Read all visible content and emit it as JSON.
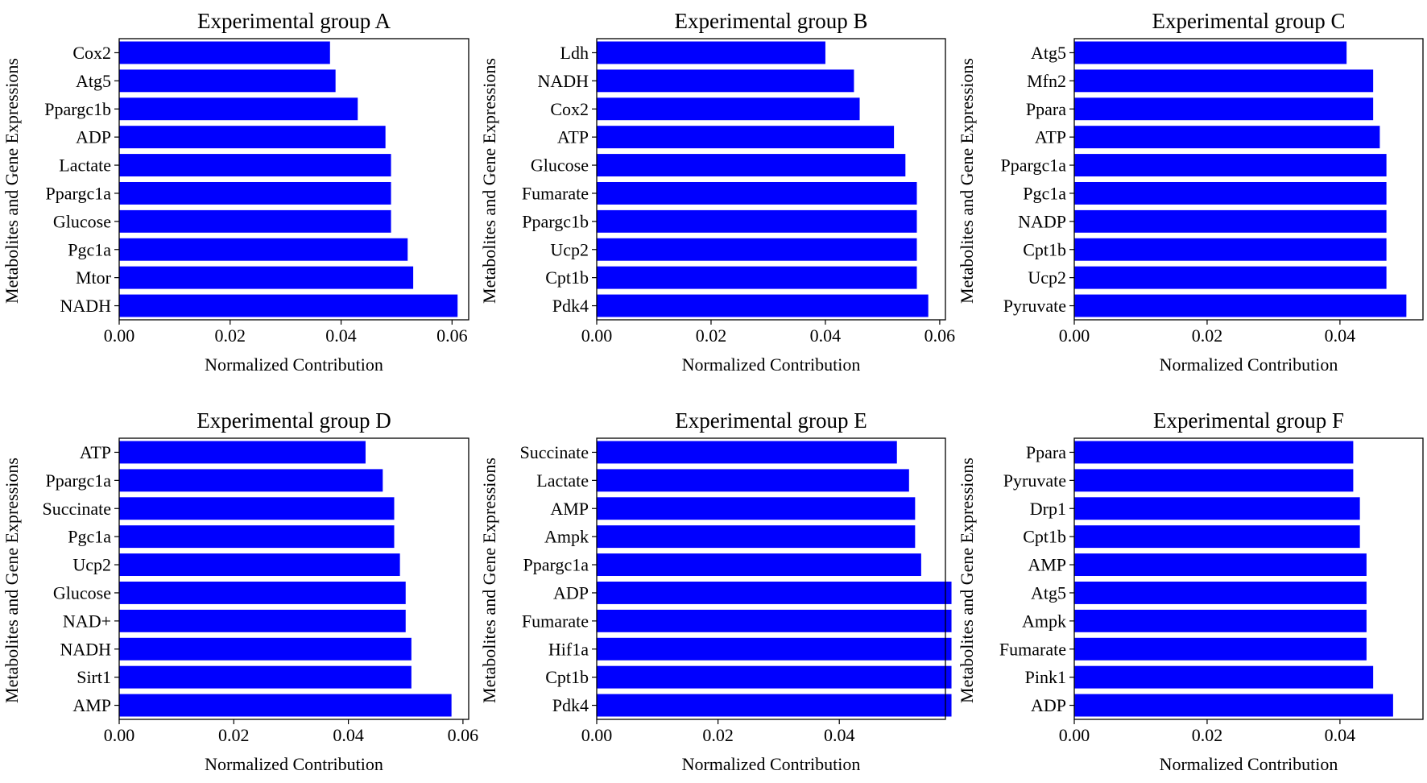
{
  "chart_data": [
    {
      "type": "bar",
      "orientation": "horizontal",
      "title": "Experimental group A",
      "xlabel": "Normalized Contribution",
      "ylabel": "Metabolites and Gene Expressions",
      "xlim": [
        0,
        0.063
      ],
      "xticks": [
        0.0,
        0.02,
        0.04,
        0.06
      ],
      "xtick_labels": [
        "0.00",
        "0.02",
        "0.04",
        "0.06"
      ],
      "bar_color": "#0000ff",
      "categories": [
        "Cox2",
        "Atg5",
        "Ppargc1b",
        "ADP",
        "Lactate",
        "Ppargc1a",
        "Glucose",
        "Pgc1a",
        "Mtor",
        "NADH"
      ],
      "values": [
        0.038,
        0.039,
        0.043,
        0.048,
        0.049,
        0.049,
        0.049,
        0.052,
        0.053,
        0.061
      ]
    },
    {
      "type": "bar",
      "orientation": "horizontal",
      "title": "Experimental group B",
      "xlabel": "Normalized Contribution",
      "ylabel": "Metabolites and Gene Expressions",
      "xlim": [
        0,
        0.061
      ],
      "xticks": [
        0.0,
        0.02,
        0.04,
        0.06
      ],
      "xtick_labels": [
        "0.00",
        "0.02",
        "0.04",
        "0.06"
      ],
      "bar_color": "#0000ff",
      "categories": [
        "Ldh",
        "NADH",
        "Cox2",
        "ATP",
        "Glucose",
        "Fumarate",
        "Ppargc1b",
        "Ucp2",
        "Cpt1b",
        "Pdk4"
      ],
      "values": [
        0.04,
        0.045,
        0.046,
        0.052,
        0.054,
        0.056,
        0.056,
        0.056,
        0.056,
        0.058
      ]
    },
    {
      "type": "bar",
      "orientation": "horizontal",
      "title": "Experimental group C",
      "xlabel": "Normalized Contribution",
      "ylabel": "Metabolites and Gene Expressions",
      "xlim": [
        0,
        0.0525
      ],
      "xticks": [
        0.0,
        0.02,
        0.04
      ],
      "xtick_labels": [
        "0.00",
        "0.02",
        "0.04"
      ],
      "bar_color": "#0000ff",
      "categories": [
        "Atg5",
        "Mfn2",
        "Ppara",
        "ATP",
        "Ppargc1a",
        "Pgc1a",
        "NADP",
        "Cpt1b",
        "Ucp2",
        "Pyruvate"
      ],
      "values": [
        0.041,
        0.045,
        0.045,
        0.046,
        0.047,
        0.047,
        0.047,
        0.047,
        0.047,
        0.05
      ]
    },
    {
      "type": "bar",
      "orientation": "horizontal",
      "title": "Experimental group D",
      "xlabel": "Normalized Contribution",
      "ylabel": "Metabolites and Gene Expressions",
      "xlim": [
        0,
        0.061
      ],
      "xticks": [
        0.0,
        0.02,
        0.04,
        0.06
      ],
      "xtick_labels": [
        "0.00",
        "0.02",
        "0.04",
        "0.06"
      ],
      "bar_color": "#0000ff",
      "categories": [
        "ATP",
        "Ppargc1a",
        "Succinate",
        "Pgc1a",
        "Ucp2",
        "Glucose",
        "NAD+",
        "NADH",
        "Sirt1",
        "AMP"
      ],
      "values": [
        0.043,
        0.046,
        0.048,
        0.048,
        0.049,
        0.05,
        0.05,
        0.051,
        0.051,
        0.058
      ]
    },
    {
      "type": "bar",
      "orientation": "horizontal",
      "title": "Experimental group E",
      "xlabel": "Normalized Contribution",
      "ylabel": "Metabolites and Gene Expressions",
      "xlim": [
        0,
        0.0575
      ],
      "xticks": [
        0.0,
        0.02,
        0.04
      ],
      "xtick_labels": [
        "0.00",
        "0.02",
        "0.04"
      ],
      "bar_color": "#0000ff",
      "categories": [
        "Succinate",
        "Lactate",
        "AMP",
        "Ampk",
        "Ppargc1a",
        "ADP",
        "Fumarate",
        "Hif1a",
        "Cpt1b",
        "Pdk4"
      ],
      "values": [
        0.0495,
        0.0515,
        0.0525,
        0.0525,
        0.0535,
        0.0585,
        0.0585,
        0.0585,
        0.0585,
        0.0585
      ]
    },
    {
      "type": "bar",
      "orientation": "horizontal",
      "title": "Experimental group F",
      "xlabel": "Normalized Contribution",
      "ylabel": "Metabolites and Gene Expressions",
      "xlim": [
        0,
        0.0525
      ],
      "xticks": [
        0.0,
        0.02,
        0.04
      ],
      "xtick_labels": [
        "0.00",
        "0.02",
        "0.04"
      ],
      "bar_color": "#0000ff",
      "categories": [
        "Ppara",
        "Pyruvate",
        "Drp1",
        "Cpt1b",
        "AMP",
        "Atg5",
        "Ampk",
        "Fumarate",
        "Pink1",
        "ADP"
      ],
      "values": [
        0.042,
        0.042,
        0.043,
        0.043,
        0.044,
        0.044,
        0.044,
        0.044,
        0.045,
        0.048
      ]
    }
  ]
}
